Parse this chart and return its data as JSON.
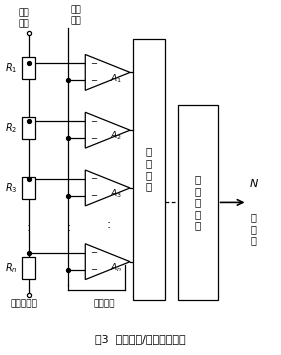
{
  "title": "图3  闪烁型模/数换器结构图",
  "bg_color": "#ffffff",
  "line_color": "#000000",
  "ref_voltage_pos_label": "参考\n电压",
  "ref_voltage_neg_label": "参考电压负",
  "input_signal_label": "输入\n信号",
  "decode_logic_label": "译\n码\n逻\n辑",
  "output_reg_label": "输\n出\n寄\n存\n器",
  "output_label_N": "N",
  "output_label_rest": "位\n输\n出",
  "sample_clock_label": "采样时钟",
  "res_labels": [
    "$R_1$",
    "$R_2$",
    "$R_3$",
    "$R_n$"
  ],
  "comp_labels": [
    "$A_1$",
    "$A_2$",
    "$A_3$",
    "$A_n$"
  ]
}
